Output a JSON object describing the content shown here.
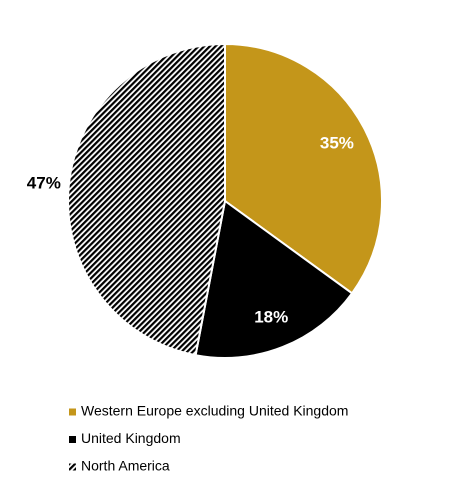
{
  "chart_data": {
    "type": "pie",
    "categories": [
      "Western Europe excluding United Kingdom",
      "United Kingdom",
      "North America"
    ],
    "values": [
      35,
      18,
      47
    ],
    "value_labels": [
      "35%",
      "18%",
      "47%"
    ],
    "colors": [
      "#c4961a",
      "#000000",
      "#000000"
    ],
    "hatched": [
      false,
      false,
      true
    ],
    "label_positions": [
      "inside",
      "inside",
      "outside"
    ],
    "legend": "bottom"
  }
}
